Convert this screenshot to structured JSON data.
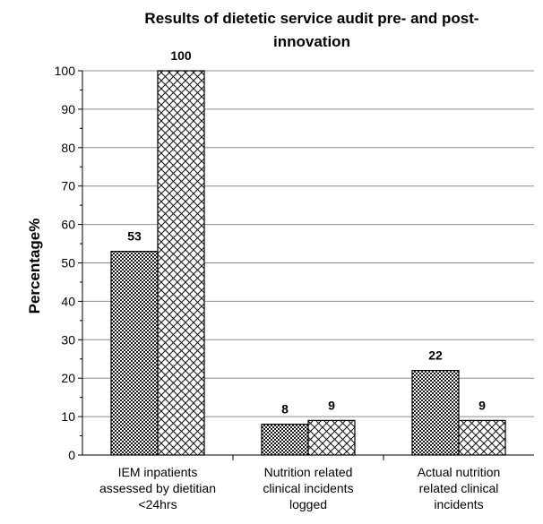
{
  "chart_data": {
    "type": "bar",
    "title_lines": [
      "Results of dietetic service audit pre- and post-",
      "innovation"
    ],
    "ylabel": "Percentage%",
    "xlabel": "",
    "ylim": [
      0,
      100
    ],
    "ytick_labels": [
      "0",
      "10",
      "20",
      "30",
      "40",
      "50",
      "60",
      "70",
      "80",
      "90",
      "100"
    ],
    "categories": [
      "IEM inpatients assessed by dietitian <24hrs",
      "Nutrition related clinical incidents logged",
      "Actual nutrition related clinical incidents"
    ],
    "category_lines": [
      [
        "IEM inpatients",
        "assessed by dietitian",
        "<24hrs"
      ],
      [
        "Nutrition related",
        "clinical incidents",
        "logged"
      ],
      [
        "Actual nutrition",
        "related clinical",
        "incidents"
      ]
    ],
    "series": [
      {
        "values": [
          53,
          8,
          22
        ],
        "data_labels": [
          "53",
          "8",
          "22"
        ],
        "pattern": "dense-dots"
      },
      {
        "values": [
          100,
          9,
          9
        ],
        "data_labels": [
          "100",
          "9",
          "9"
        ],
        "pattern": "crosshatch"
      }
    ],
    "grid": true,
    "legend": "none"
  }
}
